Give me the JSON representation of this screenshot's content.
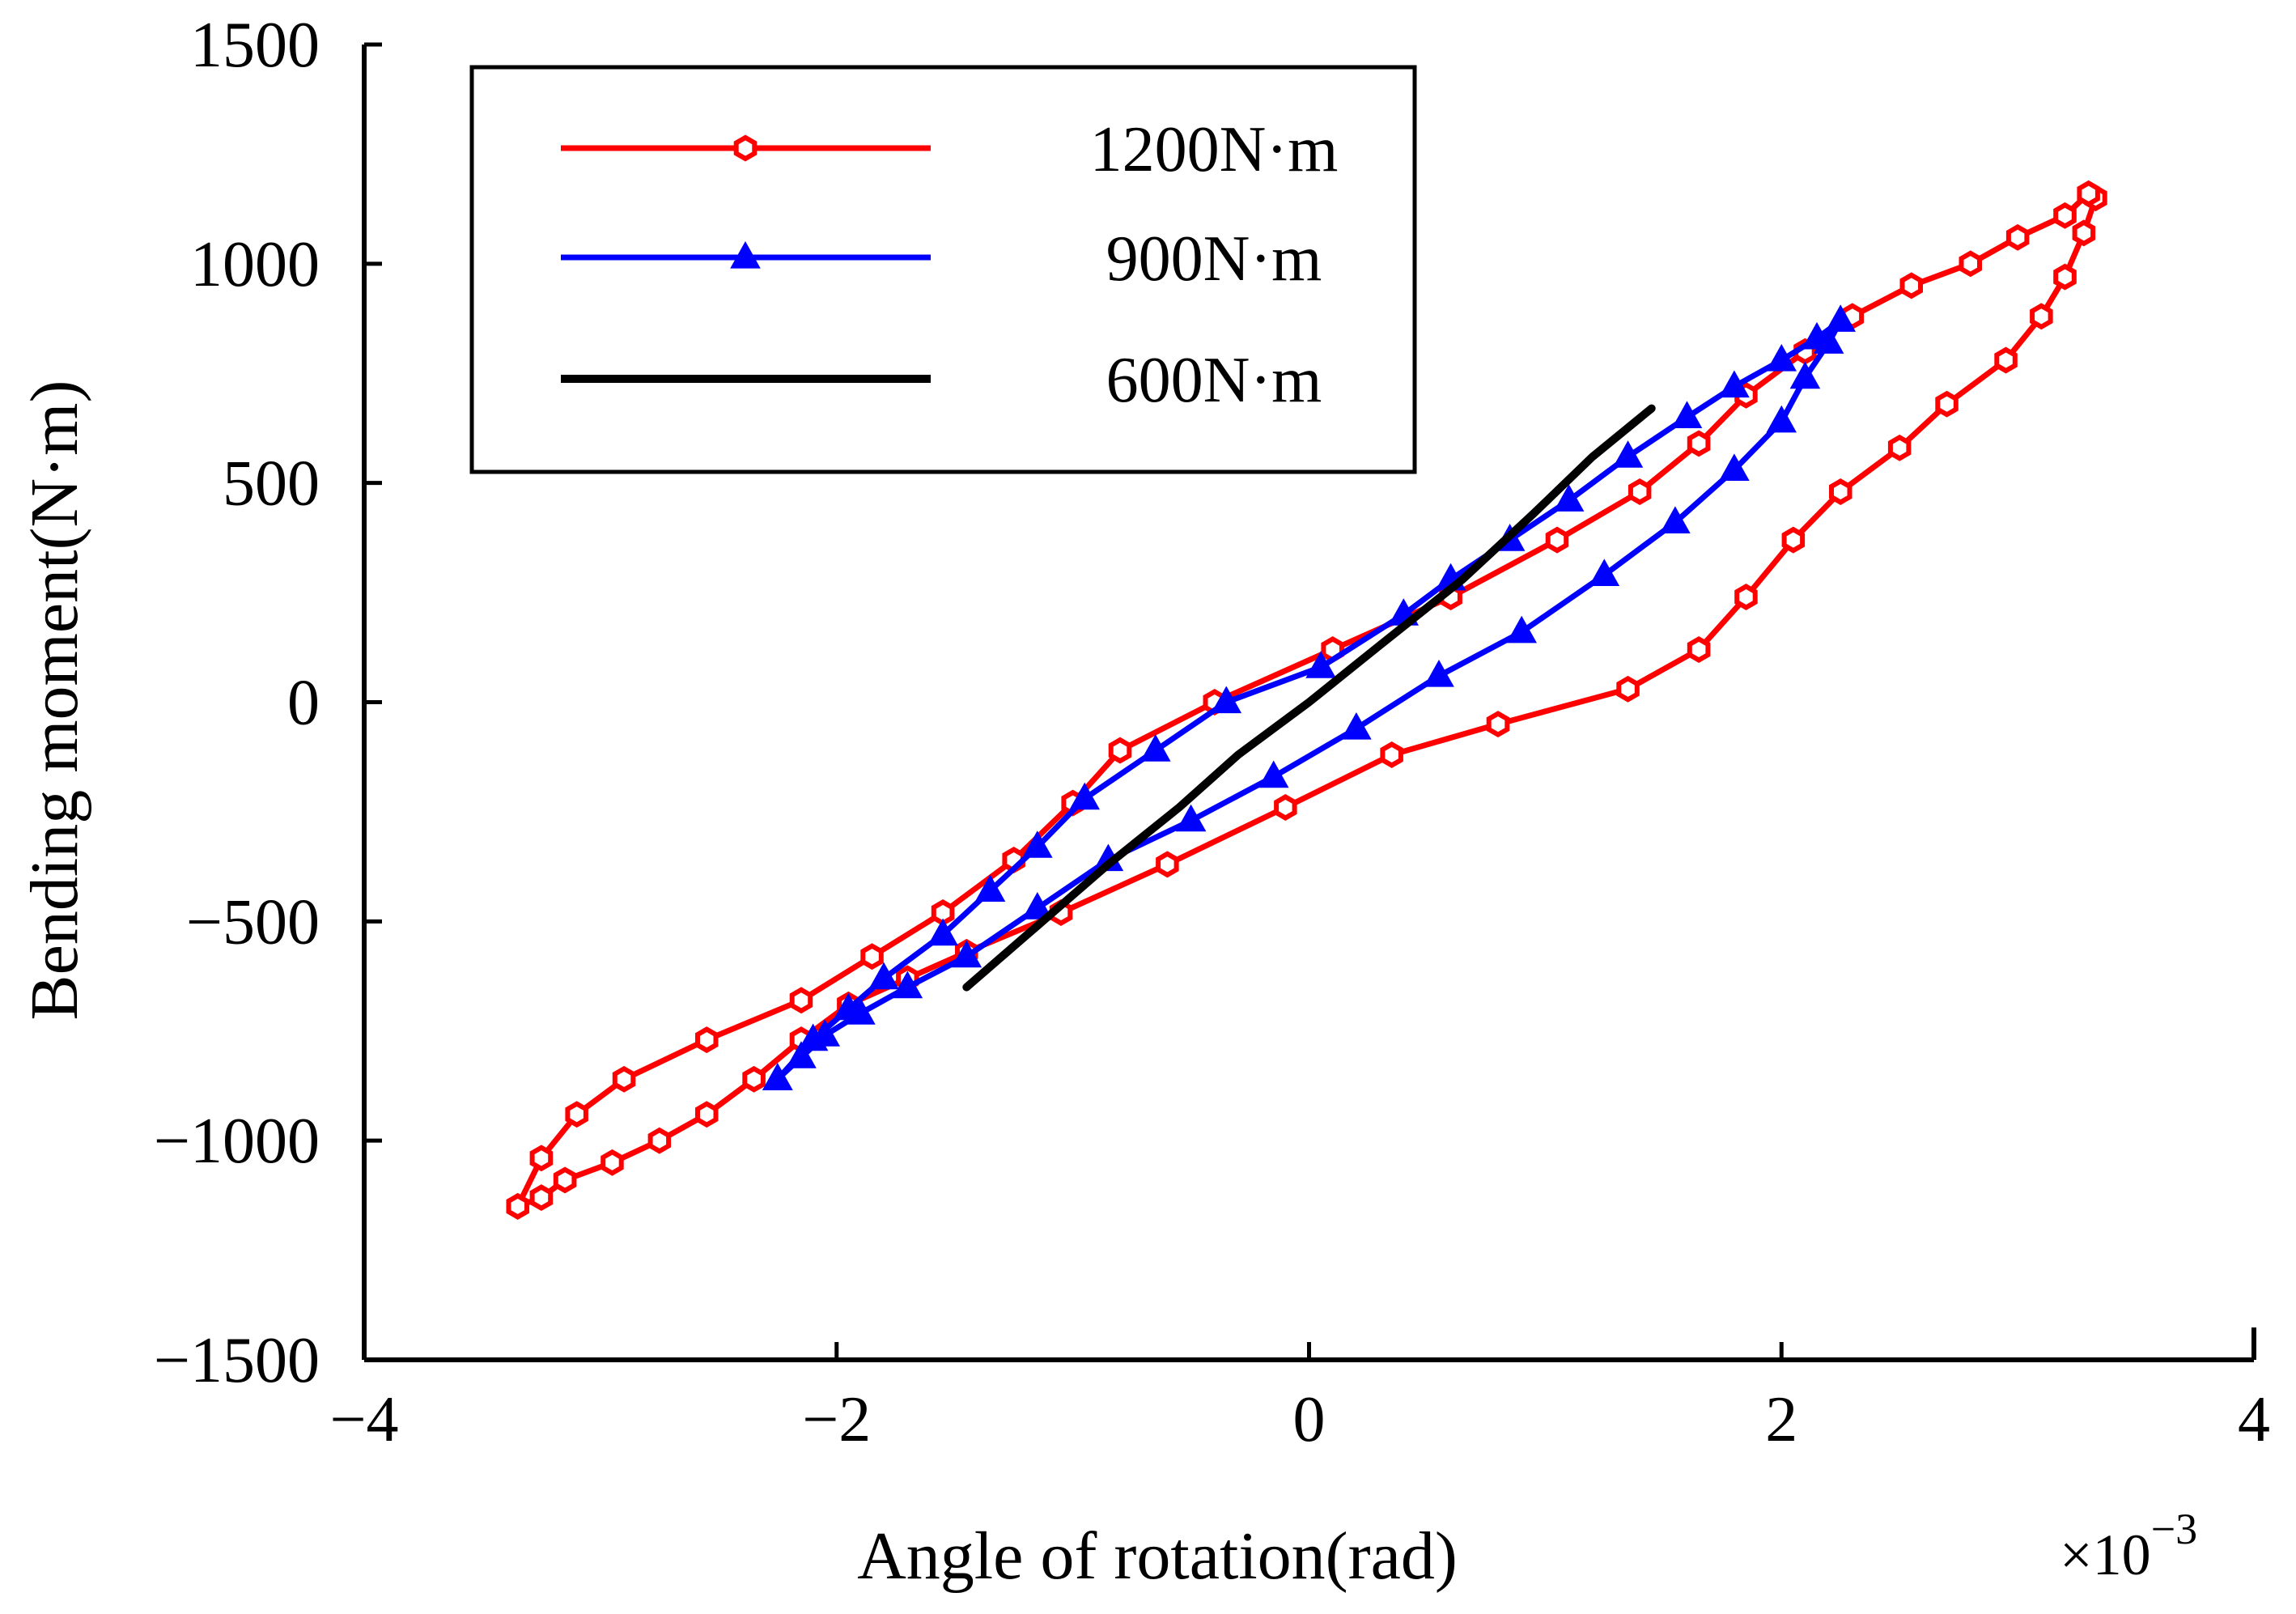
{
  "chart_data": {
    "type": "line",
    "title": "",
    "xlabel": "Angle of rotation(rad)",
    "ylabel": "Bending moment(N·m)",
    "x_multiplier": "×10",
    "x_multiplier_exp": "−3",
    "xlim": [
      -4,
      4
    ],
    "ylim": [
      -1500,
      1500
    ],
    "x_ticks": [
      -4,
      -2,
      0,
      2,
      4
    ],
    "x_tick_labels": [
      "−4",
      "−2",
      "0",
      "2",
      "4"
    ],
    "y_ticks": [
      1500,
      1000,
      500,
      0,
      -500,
      -1000,
      -1500
    ],
    "y_tick_labels": [
      "1500",
      "1000",
      "500",
      "0",
      "−500",
      "−1000",
      "−1500"
    ],
    "grid": false,
    "legend_position": "top-left",
    "series": [
      {
        "name": "1200N·m",
        "color": "#ff0000",
        "marker": "hexagon",
        "x": [
          -3.35,
          -3.25,
          -3.15,
          -2.95,
          -2.75,
          -2.55,
          -2.35,
          -2.15,
          -1.95,
          -1.7,
          -1.45,
          -1.05,
          -0.6,
          -0.1,
          0.35,
          0.8,
          1.35,
          1.65,
          1.85,
          2.05,
          2.25,
          2.5,
          2.7,
          2.95,
          3.1,
          3.2,
          3.28,
          3.33,
          3.3,
          3.2,
          3.0,
          2.8,
          2.55,
          2.3,
          2.1,
          1.85,
          1.65,
          1.4,
          1.05,
          0.6,
          0.1,
          -0.4,
          -0.8,
          -1.0,
          -1.25,
          -1.55,
          -1.85,
          -2.15,
          -2.55,
          -2.9,
          -3.1,
          -3.25,
          -3.35
        ],
        "y": [
          -1150,
          -1130,
          -1090,
          -1050,
          -1000,
          -940,
          -860,
          -770,
          -690,
          -630,
          -570,
          -480,
          -370,
          -240,
          -120,
          -50,
          30,
          120,
          240,
          370,
          480,
          580,
          680,
          780,
          880,
          970,
          1070,
          1150,
          1160,
          1110,
          1060,
          1000,
          950,
          880,
          800,
          700,
          590,
          480,
          370,
          240,
          120,
          0,
          -110,
          -230,
          -360,
          -480,
          -580,
          -680,
          -770,
          -860,
          -940,
          -1040,
          -1150
        ]
      },
      {
        "name": "900N·m",
        "color": "#0000ff",
        "marker": "triangle",
        "x": [
          -2.25,
          -2.15,
          -2.05,
          -1.9,
          -1.7,
          -1.45,
          -1.15,
          -0.85,
          -0.5,
          -0.15,
          0.2,
          0.55,
          0.9,
          1.25,
          1.55,
          1.8,
          2.0,
          2.1,
          2.2,
          2.25,
          2.15,
          2.0,
          1.8,
          1.6,
          1.35,
          1.1,
          0.85,
          0.6,
          0.4,
          0.05,
          -0.35,
          -0.65,
          -0.95,
          -1.15,
          -1.35,
          -1.55,
          -1.8,
          -1.95,
          -2.1,
          -2.25
        ],
        "y": [
          -860,
          -810,
          -760,
          -710,
          -650,
          -580,
          -470,
          -360,
          -270,
          -170,
          -60,
          60,
          160,
          290,
          410,
          530,
          640,
          740,
          820,
          870,
          830,
          780,
          720,
          650,
          560,
          460,
          370,
          280,
          200,
          80,
          0,
          -110,
          -220,
          -330,
          -430,
          -530,
          -630,
          -700,
          -770,
          -860
        ]
      },
      {
        "name": "600N·m",
        "color": "#000000",
        "marker": "none",
        "x": [
          -1.45,
          -1.15,
          -0.85,
          -0.55,
          -0.3,
          0.0,
          0.3,
          0.65,
          0.95,
          1.2,
          1.45
        ],
        "y": [
          -650,
          -510,
          -370,
          -240,
          -120,
          0,
          130,
          280,
          430,
          560,
          670
        ]
      }
    ]
  }
}
